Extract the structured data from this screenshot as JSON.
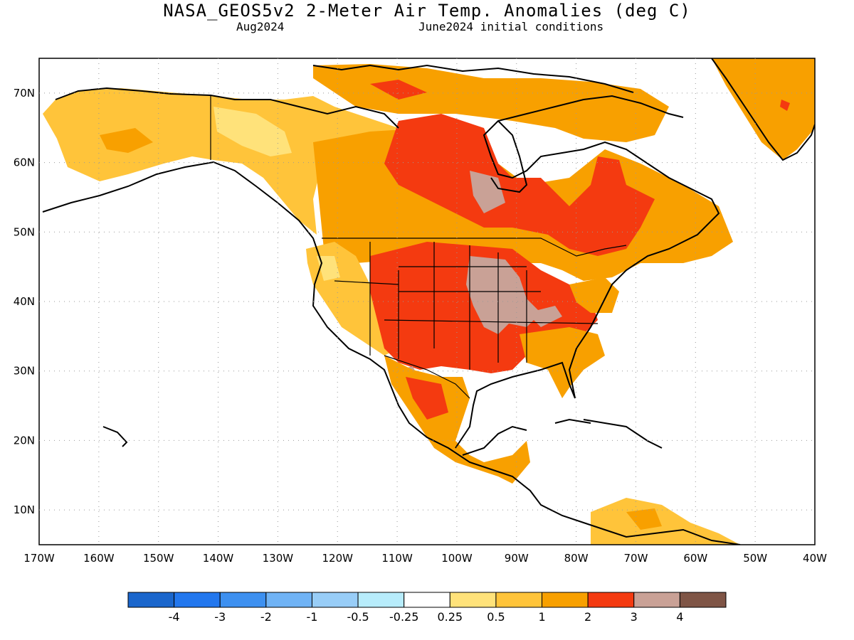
{
  "title": "NASA_GEOS5v2 2-Meter Air Temp. Anomalies (deg C)",
  "subtitle_left": "Aug2024",
  "subtitle_right": "June2024 initial conditions",
  "map": {
    "lat_ticks": [
      "70N",
      "60N",
      "50N",
      "40N",
      "30N",
      "20N",
      "10N"
    ],
    "lon_ticks": [
      "170W",
      "160W",
      "150W",
      "140W",
      "130W",
      "120W",
      "110W",
      "100W",
      "90W",
      "80W",
      "70W",
      "60W",
      "50W",
      "40W"
    ],
    "lat_range": [
      5,
      75
    ],
    "lon_range": [
      -170,
      -40
    ]
  },
  "colorbar": {
    "colors": [
      "#1a66cc",
      "#2277ee",
      "#3d90f0",
      "#70b3f5",
      "#98cdf7",
      "#b7ecfb",
      "#ffffff",
      "#ffe27a",
      "#ffc43a",
      "#f8a000",
      "#f43a10",
      "#c9a196",
      "#7f5546"
    ],
    "labels": [
      "-4",
      "-3",
      "-2",
      "-1",
      "-0.5",
      "-0.25",
      "0.25",
      "0.5",
      "1",
      "2",
      "3",
      "4"
    ]
  }
}
